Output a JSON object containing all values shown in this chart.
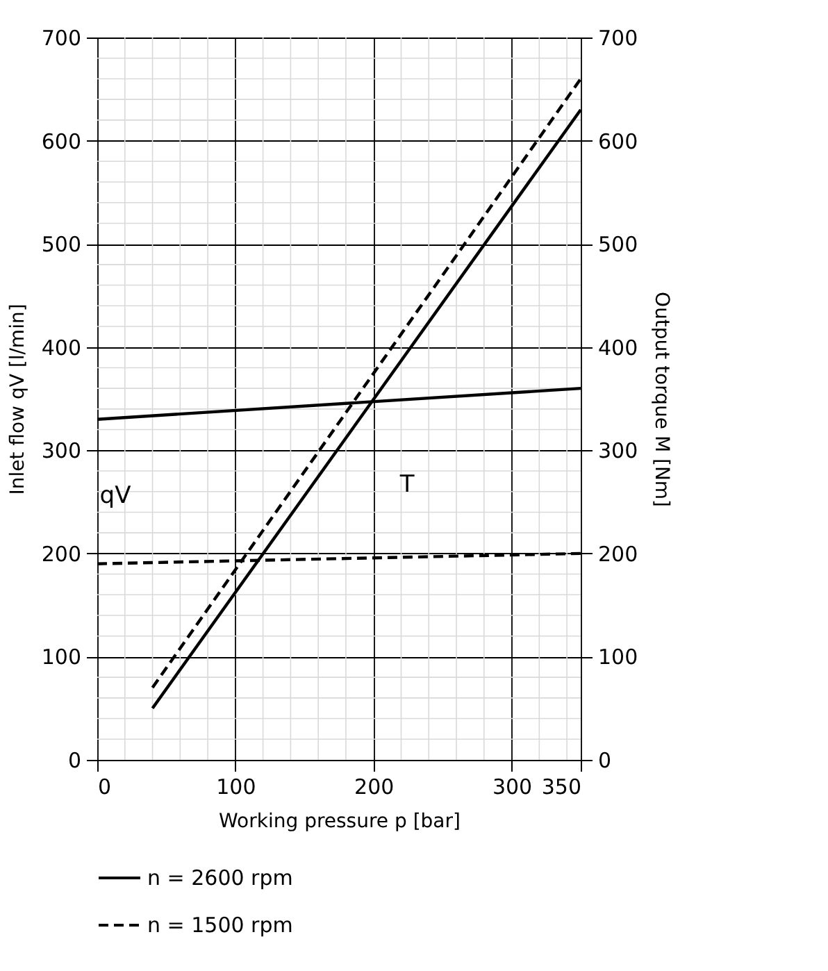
{
  "chart_data": {
    "type": "line",
    "xlabel": "Working pressure p [bar]",
    "ylabel": "Inlet flow qV [l/min]",
    "y2label": "Output torque M [Nm]",
    "xlim": [
      0,
      350
    ],
    "xticks": [
      0,
      100,
      200,
      300,
      350
    ],
    "ylim": [
      0,
      700
    ],
    "yticks": [
      0,
      100,
      200,
      300,
      400,
      500,
      600,
      700
    ],
    "y2lim": [
      0,
      700
    ],
    "y2ticks": [
      0,
      100,
      200,
      300,
      400,
      500,
      600,
      700
    ],
    "grid": true,
    "legend": "bottom",
    "marker": "none",
    "series": [
      {
        "name": "n = 2600 rpm",
        "color": "#000000",
        "line_style": "solid",
        "x": [
          0,
          350
        ],
        "values": [
          330,
          360
        ]
      },
      {
        "name": "n = 1500 rpm",
        "color": "#000000",
        "line_style": "dashed",
        "x": [
          0,
          350
        ],
        "values": [
          190,
          200
        ]
      },
      {
        "color": "#000000",
        "line_style": "solid",
        "axis": "y2",
        "x": [
          40,
          350
        ],
        "values": [
          50,
          630
        ]
      },
      {
        "color": "#000000",
        "line_style": "dashed",
        "axis": "y2",
        "x": [
          40,
          350
        ],
        "values": [
          70,
          660
        ]
      }
    ],
    "annotations": [
      "qV",
      "T"
    ]
  }
}
